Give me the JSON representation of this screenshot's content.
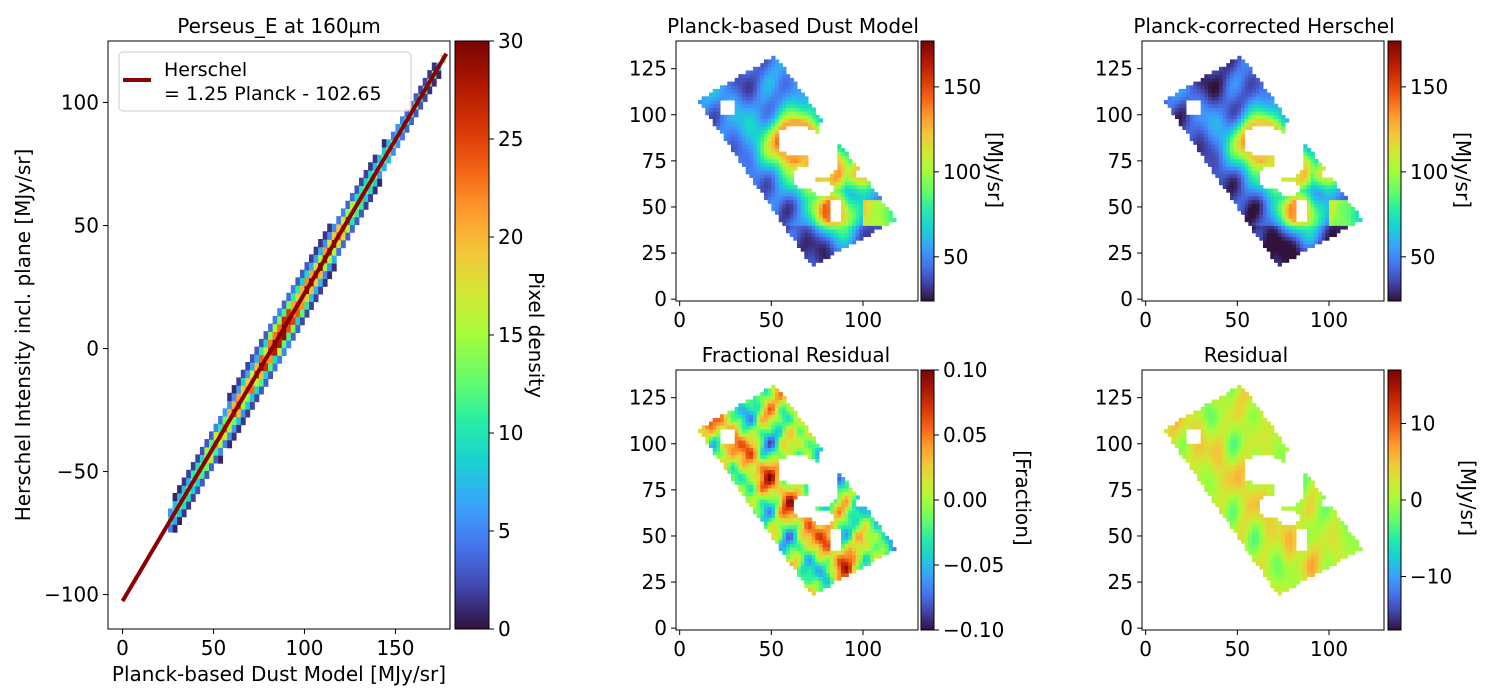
{
  "chart_data": [
    {
      "id": "scatter",
      "type": "heatmap",
      "title": "Perseus_E at 160µm",
      "xlabel": "Planck-based Dust Model [MJy/sr]",
      "ylabel": "Herschel Intensity incl. plane [MJy/sr]",
      "xlim": [
        -8,
        180
      ],
      "ylim": [
        -114,
        125
      ],
      "xticks": [
        0,
        50,
        100,
        150
      ],
      "yticks": [
        -100,
        -50,
        0,
        50,
        100
      ],
      "fit": {
        "slope": 1.25,
        "intercept": -102.65,
        "x_range": [
          0,
          178
        ],
        "color": "#8b0000"
      },
      "legend": {
        "position": "top-left",
        "line1": "Herschel",
        "line2": "= 1.25 Planck - 102.65"
      },
      "colorbar": {
        "label": "Pixel density",
        "range": [
          0,
          30
        ],
        "ticks": [
          0,
          5,
          10,
          15,
          20,
          25,
          30
        ],
        "cmap": "turbo"
      }
    },
    {
      "id": "map-dust",
      "type": "heatmap",
      "title": "Planck-based Dust Model",
      "xlim": [
        -2,
        130
      ],
      "ylim": [
        -1,
        140
      ],
      "xticks": [
        0,
        50,
        100
      ],
      "yticks": [
        0,
        25,
        50,
        75,
        100,
        125
      ],
      "colorbar": {
        "label": "[MJy/sr]",
        "range": [
          24,
          177
        ],
        "ticks": [
          50,
          100,
          150
        ],
        "cmap": "turbo"
      },
      "field": "dust"
    },
    {
      "id": "map-corrected",
      "type": "heatmap",
      "title": "Planck-corrected Herschel",
      "xlim": [
        -2,
        130
      ],
      "ylim": [
        -1,
        140
      ],
      "xticks": [
        0,
        50,
        100
      ],
      "yticks": [
        0,
        25,
        50,
        75,
        100,
        125
      ],
      "colorbar": {
        "label": "[MJy/sr]",
        "range": [
          24,
          177
        ],
        "ticks": [
          50,
          100,
          150
        ],
        "cmap": "turbo"
      },
      "field": "corrected"
    },
    {
      "id": "map-fracres",
      "type": "heatmap",
      "title": "Fractional Residual",
      "xlim": [
        -2,
        130
      ],
      "ylim": [
        -1,
        140
      ],
      "xticks": [
        0,
        50,
        100
      ],
      "yticks": [
        0,
        25,
        50,
        75,
        100,
        125
      ],
      "colorbar": {
        "label": "[Fraction]",
        "range": [
          -0.1,
          0.1
        ],
        "ticks": [
          -0.1,
          -0.05,
          0.0,
          0.05,
          0.1
        ],
        "tick_labels": [
          "−0.10",
          "−0.05",
          "0.00",
          "0.05",
          "0.10"
        ],
        "cmap": "turbo"
      },
      "field": "fracres"
    },
    {
      "id": "map-res",
      "type": "heatmap",
      "title": "Residual",
      "xlim": [
        -2,
        130
      ],
      "ylim": [
        -1,
        140
      ],
      "xticks": [
        0,
        50,
        100
      ],
      "yticks": [
        0,
        25,
        50,
        75,
        100,
        125
      ],
      "colorbar": {
        "label": "[MJy/sr]",
        "range": [
          -17,
          17
        ],
        "ticks": [
          -10,
          0,
          10
        ],
        "tick_labels": [
          "−10",
          "0",
          "10"
        ],
        "cmap": "turbo"
      },
      "field": "res"
    }
  ]
}
